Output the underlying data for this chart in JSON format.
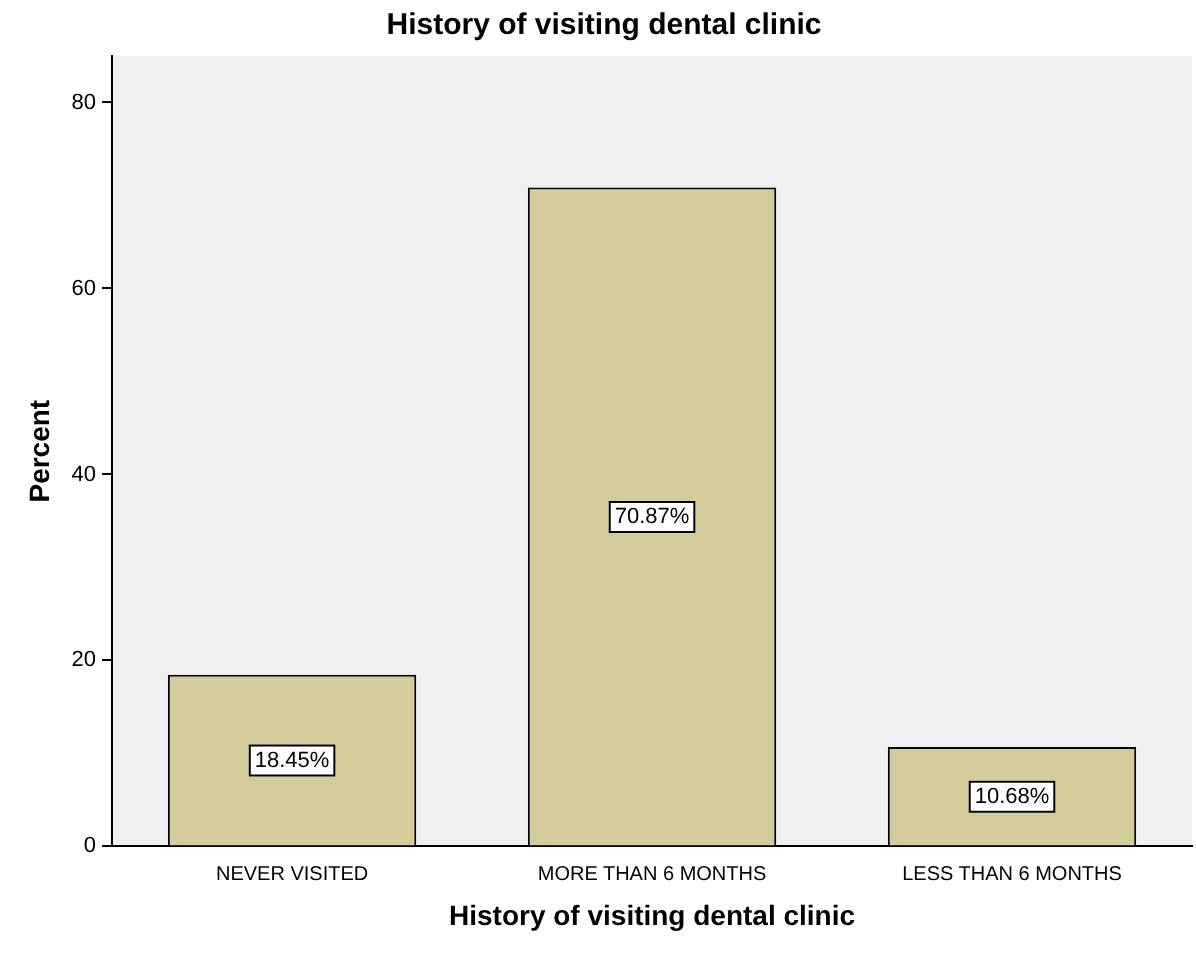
{
  "chart_data": {
    "type": "bar",
    "title": "History of visiting dental clinic",
    "xlabel": "History of visiting dental clinic",
    "ylabel": "Percent",
    "categories": [
      "NEVER VISITED",
      "MORE THAN 6 MONTHS",
      "LESS THAN 6 MONTHS"
    ],
    "values": [
      18.45,
      70.87,
      10.68
    ],
    "value_labels": [
      "18.45%",
      "70.87%",
      "10.68%"
    ],
    "color": "#d3cb9b",
    "ylim": [
      0,
      85
    ],
    "yticks": [
      0,
      20,
      40,
      60,
      80
    ],
    "grid": false,
    "legend": false
  }
}
